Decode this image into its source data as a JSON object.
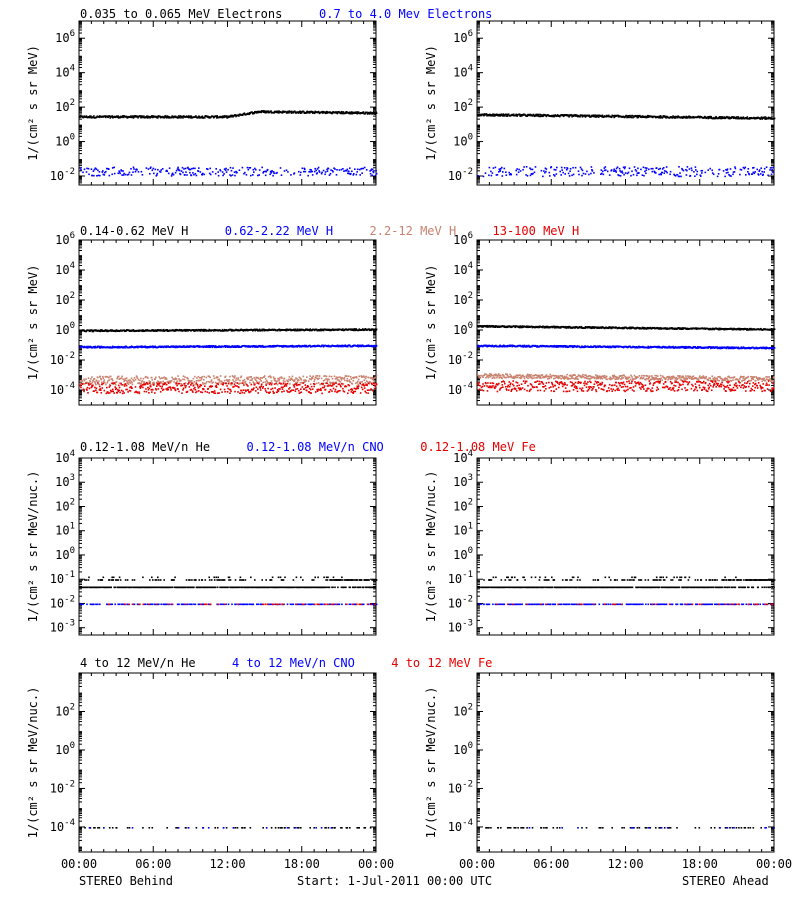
{
  "colors": {
    "black": "#000000",
    "blue": "#0000ff",
    "tan": "#c8826e",
    "red": "#e60000",
    "magenta": "#b4007a"
  },
  "footer": {
    "left": "STEREO Behind",
    "center": "Start:  1-Jul-2011 00:00 UTC",
    "right": "STEREO Ahead"
  },
  "x_ticks": [
    "00:00",
    "06:00",
    "12:00",
    "18:00",
    "00:00"
  ],
  "rows": [
    {
      "ylabel": "1/(cm² s sr MeV)",
      "ticks": [
        {
          "base": "10",
          "exp": "6",
          "value": 1000000
        },
        {
          "base": "10",
          "exp": "4",
          "value": 10000
        },
        {
          "base": "10",
          "exp": "2",
          "value": 100
        },
        {
          "base": "10",
          "exp": "0",
          "value": 1
        },
        {
          "base": "10",
          "exp": "-2",
          "value": 0.01
        }
      ],
      "ylim": [
        0.003,
        10000000
      ],
      "titles": [
        {
          "text": "0.035 to 0.065 MeV Electrons",
          "color": "black"
        },
        {
          "text": "0.7 to 4.0 Mev Electrons",
          "color": "blue"
        }
      ]
    },
    {
      "ylabel": "1/(cm² s sr MeV)",
      "ticks": [
        {
          "base": "10",
          "exp": "6",
          "value": 1000000
        },
        {
          "base": "10",
          "exp": "4",
          "value": 10000
        },
        {
          "base": "10",
          "exp": "2",
          "value": 100
        },
        {
          "base": "10",
          "exp": "0",
          "value": 1
        },
        {
          "base": "10",
          "exp": "-2",
          "value": 0.01
        },
        {
          "base": "10",
          "exp": "-4",
          "value": 0.0001
        }
      ],
      "ylim": [
        1e-05,
        1000000
      ],
      "titles": [
        {
          "text": "0.14-0.62 MeV H",
          "color": "black"
        },
        {
          "text": "0.62-2.22 MeV H",
          "color": "blue"
        },
        {
          "text": "2.2-12 MeV H",
          "color": "tan"
        },
        {
          "text": "13-100 MeV H",
          "color": "red"
        }
      ]
    },
    {
      "ylabel": "1/(cm² s sr MeV/nuc.)",
      "ticks": [
        {
          "base": "10",
          "exp": "4",
          "value": 10000
        },
        {
          "base": "10",
          "exp": "3",
          "value": 1000
        },
        {
          "base": "10",
          "exp": "2",
          "value": 100
        },
        {
          "base": "10",
          "exp": "1",
          "value": 10
        },
        {
          "base": "10",
          "exp": "0",
          "value": 1
        },
        {
          "base": "10",
          "exp": "-1",
          "value": 0.1
        },
        {
          "base": "10",
          "exp": "-2",
          "value": 0.01
        },
        {
          "base": "10",
          "exp": "-3",
          "value": 0.001
        }
      ],
      "ylim": [
        0.0005,
        10000
      ],
      "titles": [
        {
          "text": "0.12-1.08 MeV/n He",
          "color": "black"
        },
        {
          "text": "0.12-1.08 MeV/n CNO",
          "color": "blue"
        },
        {
          "text": "0.12-1.08 MeV Fe",
          "color": "red"
        }
      ]
    },
    {
      "ylabel": "1/(cm² s sr MeV/nuc.)",
      "ticks": [
        {
          "base": "10",
          "exp": "2",
          "value": 100
        },
        {
          "base": "10",
          "exp": "0",
          "value": 1
        },
        {
          "base": "10",
          "exp": "-2",
          "value": 0.01
        },
        {
          "base": "10",
          "exp": "-4",
          "value": 0.0001
        }
      ],
      "ylim": [
        5e-06,
        10000
      ],
      "titles": [
        {
          "text": "4 to 12 MeV/n He",
          "color": "black"
        },
        {
          "text": "4 to 12 MeV/n CNO",
          "color": "blue"
        },
        {
          "text": "4 to 12 MeV Fe",
          "color": "red"
        }
      ]
    }
  ],
  "chart_data": [
    {
      "type": "scatter",
      "spacecraft": "STEREO Behind",
      "xlim": [
        0,
        24
      ],
      "yscale": "log",
      "series": [
        {
          "color": "black",
          "profile": [
            [
              0,
              30
            ],
            [
              12,
              30
            ],
            [
              13,
              40
            ],
            [
              14.5,
              60
            ],
            [
              24,
              50
            ]
          ],
          "jitter": 0.06,
          "density": 1.0
        },
        {
          "color": "blue",
          "profile": [
            [
              0,
              0.02
            ],
            [
              24,
              0.02
            ]
          ],
          "jitter": 0.25,
          "density": 0.45
        }
      ]
    },
    {
      "type": "scatter",
      "spacecraft": "STEREO Ahead",
      "xlim": [
        0,
        24
      ],
      "yscale": "log",
      "series": [
        {
          "color": "black",
          "profile": [
            [
              0,
              40
            ],
            [
              24,
              25
            ]
          ],
          "jitter": 0.06,
          "density": 1.0
        },
        {
          "color": "blue",
          "profile": [
            [
              0,
              0.02
            ],
            [
              24,
              0.02
            ]
          ],
          "jitter": 0.28,
          "density": 0.45
        }
      ]
    },
    {
      "type": "scatter",
      "spacecraft": "STEREO Behind",
      "xlim": [
        0,
        24
      ],
      "yscale": "log",
      "series": [
        {
          "color": "black",
          "profile": [
            [
              0,
              1
            ],
            [
              24,
              1.2
            ]
          ],
          "jitter": 0.05,
          "density": 1.0
        },
        {
          "color": "blue",
          "profile": [
            [
              0,
              0.08
            ],
            [
              24,
              0.1
            ]
          ],
          "jitter": 0.05,
          "density": 1.0
        },
        {
          "color": "tan",
          "profile": [
            [
              0,
              0.0005
            ],
            [
              24,
              0.0005
            ]
          ],
          "jitter": 0.3,
          "density": 0.9
        },
        {
          "color": "red",
          "profile": [
            [
              0,
              0.00015
            ],
            [
              24,
              0.00015
            ]
          ],
          "jitter": 0.35,
          "density": 0.8
        }
      ]
    },
    {
      "type": "scatter",
      "spacecraft": "STEREO Ahead",
      "xlim": [
        0,
        24
      ],
      "yscale": "log",
      "series": [
        {
          "color": "black",
          "profile": [
            [
              0,
              2
            ],
            [
              24,
              1.2
            ]
          ],
          "jitter": 0.05,
          "density": 1.0
        },
        {
          "color": "blue",
          "profile": [
            [
              0,
              0.1
            ],
            [
              24,
              0.07
            ]
          ],
          "jitter": 0.05,
          "density": 1.0
        },
        {
          "color": "tan",
          "profile": [
            [
              0,
              0.001
            ],
            [
              24,
              0.0006
            ]
          ],
          "jitter": 0.15,
          "density": 0.9
        },
        {
          "color": "red",
          "profile": [
            [
              0,
              0.0002
            ],
            [
              24,
              0.0002
            ]
          ],
          "jitter": 0.35,
          "density": 0.8
        }
      ]
    },
    {
      "type": "scatter",
      "spacecraft": "STEREO Behind",
      "xlim": [
        0,
        24
      ],
      "yscale": "log",
      "series": [
        {
          "color": "black",
          "profile": [
            [
              0,
              0.05
            ],
            [
              24,
              0.05
            ]
          ],
          "jitter": 0.0,
          "density": 0.95,
          "levels": [
            0.05,
            0.1,
            0.13
          ]
        },
        {
          "color": "blue",
          "profile": [
            [
              0,
              0.01
            ],
            [
              24,
              0.01
            ]
          ],
          "jitter": 0.0,
          "density": 0.35
        },
        {
          "color": "red",
          "profile": [
            [
              0,
              0.01
            ],
            [
              24,
              0.01
            ]
          ],
          "jitter": 0.0,
          "density": 0.12
        }
      ]
    },
    {
      "type": "scatter",
      "spacecraft": "STEREO Ahead",
      "xlim": [
        0,
        24
      ],
      "yscale": "log",
      "series": [
        {
          "color": "black",
          "profile": [
            [
              0,
              0.05
            ],
            [
              24,
              0.05
            ]
          ],
          "jitter": 0.0,
          "density": 0.95,
          "levels": [
            0.05,
            0.1,
            0.13
          ]
        },
        {
          "color": "blue",
          "profile": [
            [
              0,
              0.01
            ],
            [
              24,
              0.01
            ]
          ],
          "jitter": 0.0,
          "density": 0.4
        },
        {
          "color": "red",
          "profile": [
            [
              0,
              0.01
            ],
            [
              24,
              0.01
            ]
          ],
          "jitter": 0.0,
          "density": 0.06
        }
      ]
    },
    {
      "type": "scatter",
      "spacecraft": "STEREO Behind",
      "xlim": [
        0,
        24
      ],
      "yscale": "log",
      "series": [
        {
          "color": "black",
          "profile": [
            [
              0,
              0.0001
            ],
            [
              24,
              0.0001
            ]
          ],
          "jitter": 0.0,
          "density": 0.12
        },
        {
          "color": "blue",
          "profile": [
            [
              0,
              0.0001
            ],
            [
              24,
              0.0001
            ]
          ],
          "jitter": 0.0,
          "density": 0.02
        }
      ]
    },
    {
      "type": "scatter",
      "spacecraft": "STEREO Ahead",
      "xlim": [
        0,
        24
      ],
      "yscale": "log",
      "series": [
        {
          "color": "black",
          "profile": [
            [
              0,
              0.0001
            ],
            [
              24,
              0.0001
            ]
          ],
          "jitter": 0.0,
          "density": 0.1
        },
        {
          "color": "blue",
          "profile": [
            [
              0,
              0.0001
            ],
            [
              24,
              0.0001
            ]
          ],
          "jitter": 0.0,
          "density": 0.02
        }
      ]
    }
  ]
}
